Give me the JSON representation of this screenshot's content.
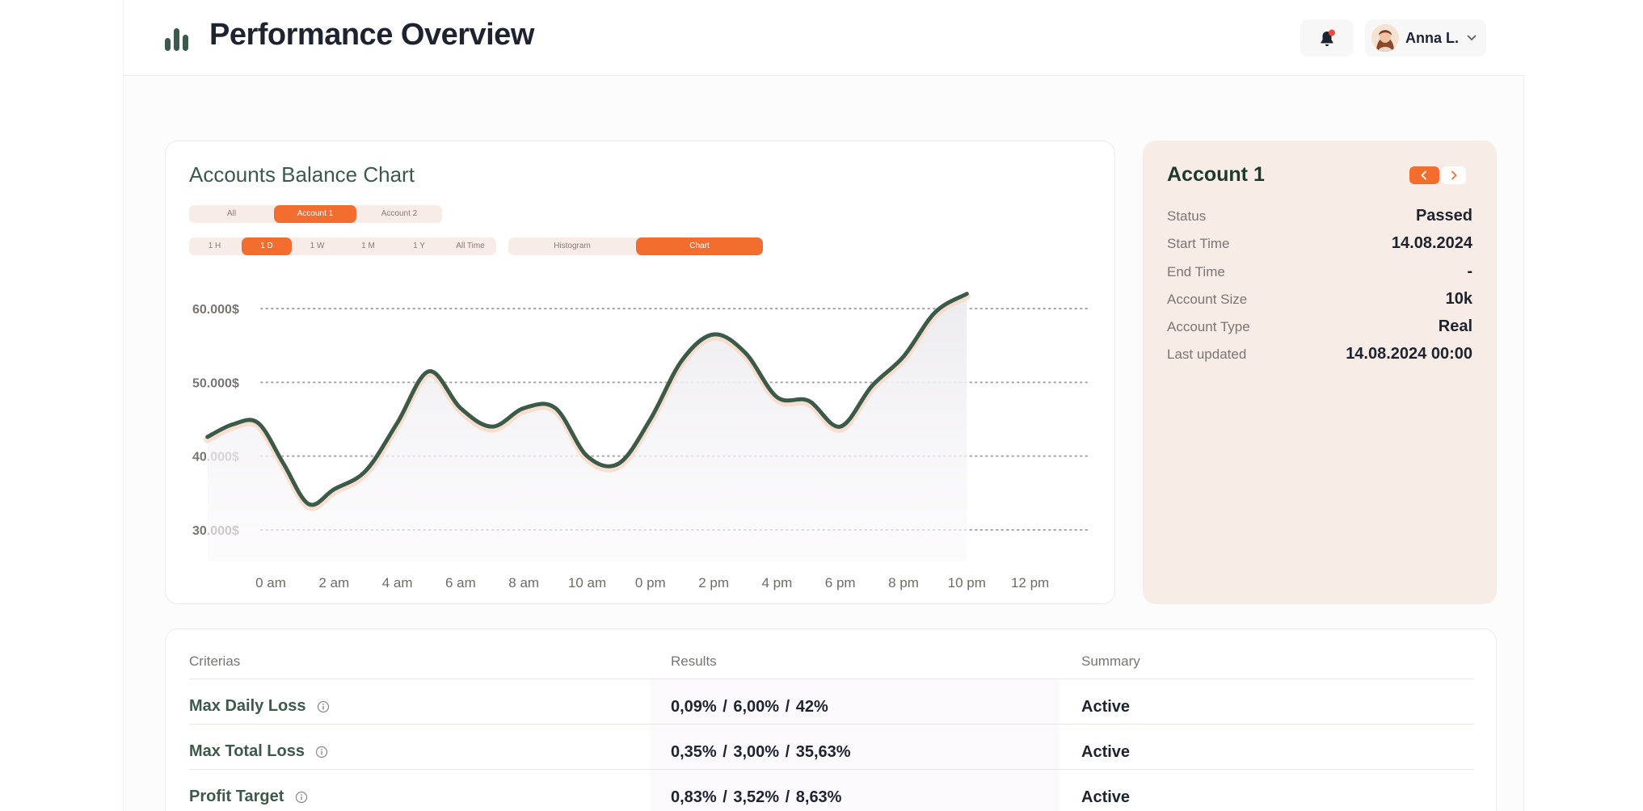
{
  "header": {
    "title": "Performance Overview",
    "user_name": "Anna L.",
    "notification_dot_color": "#f04a3c",
    "logo_color": "#3c5a4a"
  },
  "chart_card": {
    "title": "Accounts Balance Chart",
    "account_filters": [
      "All",
      "Account 1",
      "Account 2"
    ],
    "account_selected": "Account 1",
    "time_ranges": [
      "1 H",
      "1 D",
      "1 W",
      "1 M",
      "1 Y",
      "All Time"
    ],
    "time_selected": "1 D",
    "view_modes": [
      "Histogram",
      "Chart"
    ],
    "view_selected": "Chart"
  },
  "chart_data": {
    "type": "line",
    "title": "",
    "xlabel": "",
    "ylabel": "",
    "x": [
      "0 am",
      "2 am",
      "4 am",
      "6 am",
      "8 am",
      "10 am",
      "0 pm",
      "2 pm",
      "4 pm",
      "6 pm",
      "8 pm",
      "10 pm",
      "12 pm"
    ],
    "y_ticks": [
      "60.000$",
      "50.000$",
      "40.000$",
      "30.000$"
    ],
    "ylim": [
      30000,
      60000
    ],
    "grid": true,
    "line_color": "#3c5a4a",
    "series": [
      {
        "name": "",
        "points": [
          [
            -1.0,
            42600
          ],
          [
            -0.6,
            44300
          ],
          [
            -0.2,
            44500
          ],
          [
            0.2,
            39000
          ],
          [
            0.6,
            33500
          ],
          [
            1.0,
            35500
          ],
          [
            1.5,
            38000
          ],
          [
            2.0,
            44500
          ],
          [
            2.5,
            51500
          ],
          [
            3.0,
            46500
          ],
          [
            3.5,
            44000
          ],
          [
            4.0,
            46500
          ],
          [
            4.5,
            46500
          ],
          [
            5.0,
            40000
          ],
          [
            5.5,
            39000
          ],
          [
            6.0,
            45000
          ],
          [
            6.5,
            53000
          ],
          [
            7.0,
            56500
          ],
          [
            7.5,
            54000
          ],
          [
            8.0,
            48000
          ],
          [
            8.5,
            47500
          ],
          [
            9.0,
            44000
          ],
          [
            9.5,
            49500
          ],
          [
            10.0,
            53500
          ],
          [
            10.5,
            59500
          ],
          [
            11.0,
            62000
          ]
        ]
      }
    ]
  },
  "account": {
    "title": "Account 1",
    "rows": [
      {
        "label": "Status",
        "value": "Passed"
      },
      {
        "label": "Start Time",
        "value": "14.08.2024"
      },
      {
        "label": "End Time",
        "value": "-"
      },
      {
        "label": "Account Size",
        "value": "10k"
      },
      {
        "label": "Account Type",
        "value": "Real"
      },
      {
        "label": "Last updated",
        "value": "14.08.2024 00:00"
      }
    ]
  },
  "criteria": {
    "headers": [
      "Criterias",
      "Results",
      "Summary"
    ],
    "rows": [
      {
        "name": "Max Daily Loss",
        "result": "0,09%  /  6,00%  /  42%",
        "summary": "Active"
      },
      {
        "name": "Max Total Loss",
        "result": "0,35%  /  3,00%  /  35,63%",
        "summary": "Active"
      },
      {
        "name": "Profit Target",
        "result": "0,83%  /  3,52%  /  8,63%",
        "summary": "Active"
      }
    ]
  }
}
